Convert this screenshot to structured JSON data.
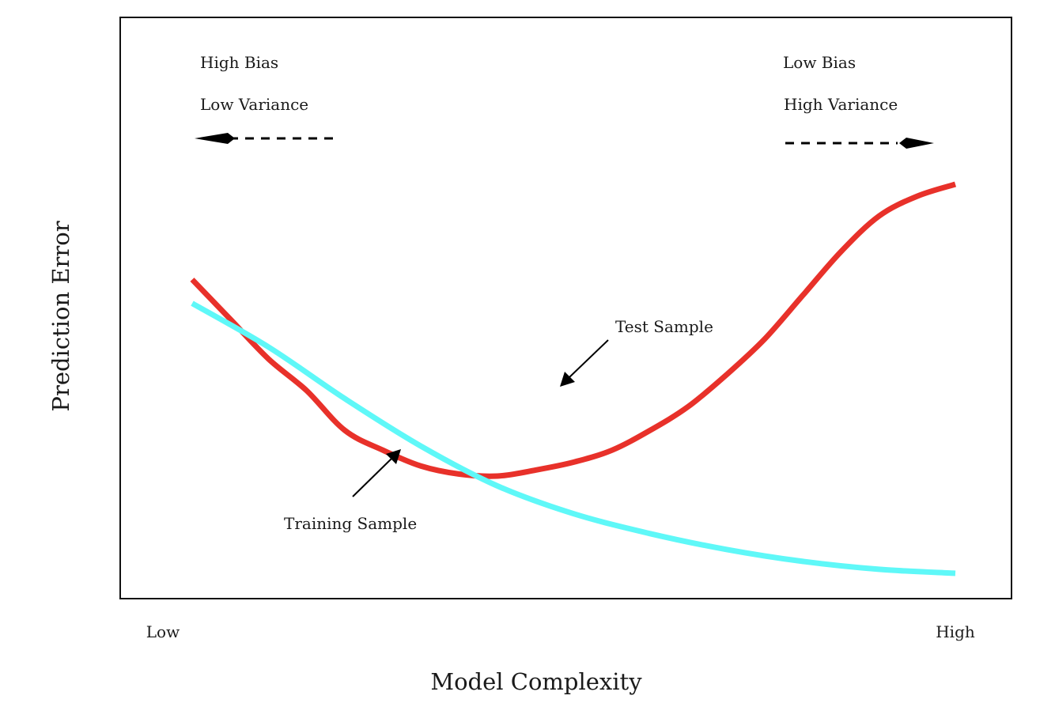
{
  "chart_data": {
    "type": "line",
    "title": "",
    "xlabel": "Model Complexity",
    "ylabel": "Prediction Error",
    "x_tick_labels": [
      "Low",
      "High"
    ],
    "xlim": [
      0,
      1
    ],
    "ylim": [
      0,
      1
    ],
    "grid": false,
    "legend": "none",
    "series": [
      {
        "name": "Test Sample",
        "color": "#e8312a",
        "x": [
          0.0,
          0.05,
          0.1,
          0.15,
          0.2,
          0.25,
          0.3,
          0.35,
          0.4,
          0.45,
          0.5,
          0.55,
          0.6,
          0.65,
          0.7,
          0.75,
          0.8,
          0.85,
          0.9,
          0.95,
          1.0
        ],
        "y": [
          0.76,
          0.66,
          0.56,
          0.48,
          0.38,
          0.33,
          0.29,
          0.27,
          0.265,
          0.28,
          0.3,
          0.33,
          0.38,
          0.44,
          0.52,
          0.61,
          0.72,
          0.83,
          0.92,
          0.97,
          1.0
        ]
      },
      {
        "name": "Training Sample",
        "color": "#5ff8f8",
        "x": [
          0.0,
          0.1,
          0.2,
          0.3,
          0.4,
          0.5,
          0.6,
          0.7,
          0.8,
          0.9,
          1.0
        ],
        "y": [
          0.7,
          0.59,
          0.46,
          0.34,
          0.24,
          0.17,
          0.12,
          0.08,
          0.05,
          0.03,
          0.02
        ]
      }
    ],
    "annotations": {
      "left_line1": "High Bias",
      "left_line2": "Low Variance",
      "right_line1": "Low Bias",
      "right_line2": "High Variance",
      "test_label": "Test Sample",
      "training_label": "Training Sample"
    }
  }
}
